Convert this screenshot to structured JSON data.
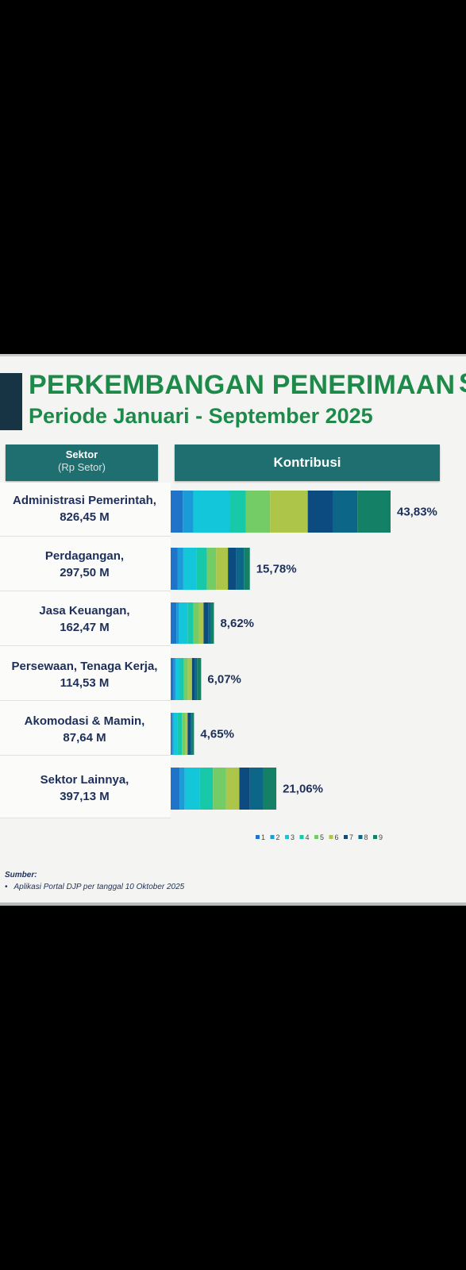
{
  "header": {
    "title": "PERKEMBANGAN PENERIMAAN",
    "title_cut": "S",
    "subtitle": "Periode Januari - September 2025"
  },
  "table_header": {
    "sektor": "Sektor",
    "sektor_unit": "(Rp Setor)",
    "kontribusi": "Kontribusi"
  },
  "chart_data": {
    "type": "bar",
    "stacked": true,
    "orientation": "horizontal",
    "categories": [
      {
        "name": "Administrasi Pemerintah,",
        "amount": "826,45 M",
        "label": "43,83%",
        "total": 43.83,
        "segments": [
          0.8,
          0.7,
          2.4,
          1.1,
          1.6,
          2.5,
          1.7,
          1.6,
          2.2
        ]
      },
      {
        "name": "Perdagangan,",
        "amount": "297,50 M",
        "label": "15,78%",
        "total": 15.78,
        "segments": [
          0.8,
          0.7,
          1.6,
          1.2,
          1.1,
          1.4,
          1.0,
          0.9,
          0.7
        ]
      },
      {
        "name": "Jasa Keuangan,",
        "amount": "162,47 M",
        "label": "8,62%",
        "total": 8.62,
        "segments": [
          0.6,
          0.3,
          0.9,
          0.6,
          0.6,
          0.5,
          0.5,
          0.3,
          0.3
        ]
      },
      {
        "name": "Persewaan, Tenaga Kerja,",
        "amount": "114,53 M",
        "label": "6,07%",
        "total": 6.07,
        "segments": [
          0.3,
          0.2,
          0.4,
          0.4,
          0.4,
          0.4,
          0.3,
          0.2,
          0.4
        ]
      },
      {
        "name": "Akomodasi & Mamin,",
        "amount": "87,64 M",
        "label": "4,65%",
        "total": 4.65,
        "segments": [
          0.2,
          0.2,
          0.6,
          0.6,
          0.5,
          0.3,
          0.4,
          0.2,
          0.3
        ]
      },
      {
        "name": "Sektor Lainnya,",
        "amount": "397,13 M",
        "label": "21,06%",
        "total": 21.06,
        "segments": [
          1.0,
          0.6,
          1.7,
          1.5,
          1.5,
          1.5,
          1.2,
          1.5,
          1.5
        ]
      }
    ],
    "legend": [
      "1",
      "2",
      "3",
      "4",
      "5",
      "6",
      "7",
      "8",
      "9"
    ],
    "colors": [
      "#1f74c9",
      "#1b9bd8",
      "#13c6da",
      "#18c9a9",
      "#74cc66",
      "#adc64a",
      "#0c4b80",
      "#0b6688",
      "#148066"
    ]
  },
  "footer": {
    "sumber_label": "Sumber:",
    "sumber_item": "Aplikasi Portal DJP per tanggal 10 Oktober 2025",
    "bullet": "•"
  }
}
